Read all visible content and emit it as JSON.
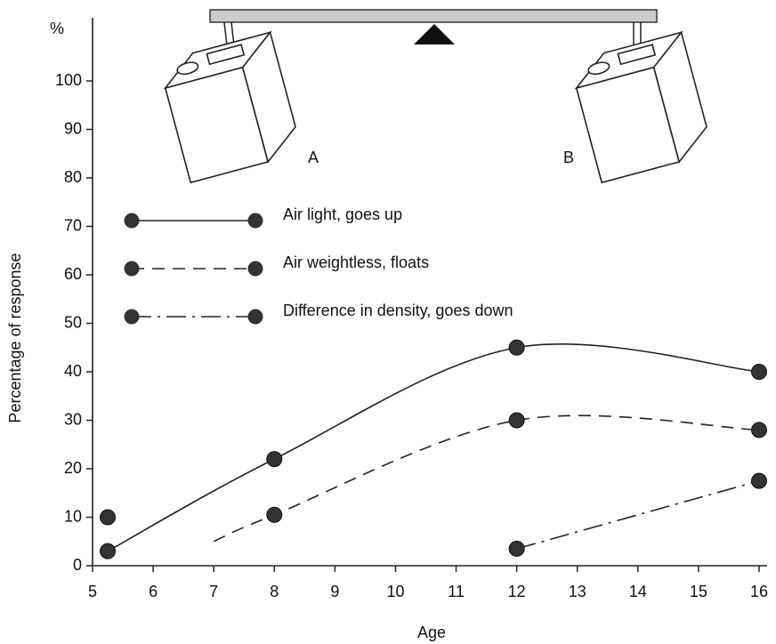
{
  "chart_data": {
    "type": "line",
    "x_label": "Age",
    "y_label": "Percentage of response",
    "y_unit_label": "%",
    "illustration_labels": [
      "A",
      "B"
    ],
    "xlim": [
      5,
      16
    ],
    "xticks": [
      5,
      6,
      7,
      8,
      9,
      10,
      11,
      12,
      13,
      14,
      15,
      16
    ],
    "ylim": [
      0,
      100
    ],
    "yticks": [
      0,
      10,
      20,
      30,
      40,
      50,
      60,
      70,
      80,
      90,
      100
    ],
    "series": [
      {
        "name": "Air light, goes up",
        "color": "#222",
        "dash": "solid",
        "x": [
          5.25,
          8,
          12,
          16
        ],
        "values": [
          3,
          22,
          45,
          40
        ]
      },
      {
        "name": "Air weightless, floats",
        "color": "#222",
        "dash": "dashed",
        "x": [
          7,
          8,
          12,
          16
        ],
        "values": [
          5,
          10.5,
          30,
          28
        ]
      },
      {
        "name": "Difference in density, goes down",
        "color": "#222",
        "dash": "dashdot",
        "x": [
          12,
          16
        ],
        "values": [
          3.5,
          17.5
        ]
      }
    ],
    "extra_points": {
      "x": [
        5.25
      ],
      "values": [
        10
      ]
    }
  }
}
